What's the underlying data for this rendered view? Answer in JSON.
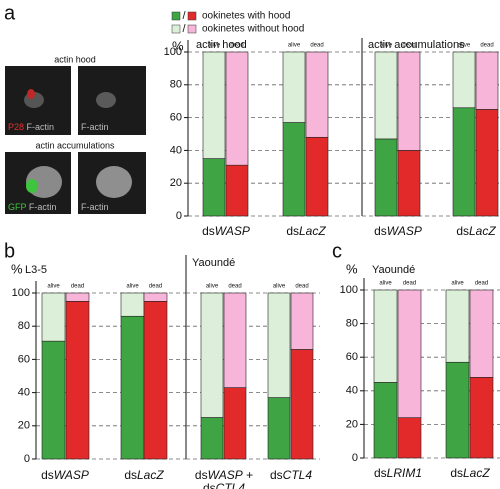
{
  "panel_labels": [
    "a",
    "b",
    "c"
  ],
  "images": [
    {
      "title": "actin hood",
      "labels": [
        [
          "P28",
          " F-actin"
        ],
        [
          "F-actin"
        ]
      ],
      "stain_color": "#e33030"
    },
    {
      "title": "actin accumulations",
      "labels": [
        [
          "GFP",
          " F-actin"
        ],
        [
          "F-actin"
        ]
      ],
      "stain_color": "#3ec43e"
    }
  ],
  "chart_data": [
    {
      "type": "bar",
      "stacked": true,
      "title": "actin hood",
      "ylabel": "%",
      "ylim": [
        0,
        100
      ],
      "yticks": [
        0,
        20,
        40,
        60,
        80,
        100
      ],
      "ytick_labels": true,
      "grid": true,
      "categories": [
        "alive",
        "dead",
        "alive",
        "dead"
      ],
      "groups": [
        [
          [
            "ds",
            "WASP"
          ]
        ],
        [
          [
            "ds",
            "LacZ"
          ]
        ]
      ],
      "series": [
        {
          "name": "ookinetes with hood",
          "colors": [
            "#3ea444",
            "#e32a2a",
            "#3ea444",
            "#e32a2a"
          ],
          "values": [
            35,
            31,
            57,
            48
          ]
        },
        {
          "name": "ookinetes without hood",
          "colors": [
            "#dcefd8",
            "#f7b5d9",
            "#dcefd8",
            "#f7b5d9"
          ],
          "values": [
            65,
            69,
            43,
            52
          ]
        }
      ]
    },
    {
      "type": "bar",
      "stacked": true,
      "title": "actin accumulations",
      "ylim": [
        0,
        100
      ],
      "yticks": [
        0,
        20,
        40,
        60,
        80,
        100
      ],
      "ytick_labels": false,
      "grid": true,
      "categories": [
        "alive",
        "dead",
        "alive",
        "dead"
      ],
      "groups": [
        [
          [
            "ds",
            "WASP"
          ]
        ],
        [
          [
            "ds",
            "LacZ"
          ]
        ]
      ],
      "series": [
        {
          "name": "ookinetes with hood",
          "colors": [
            "#3ea444",
            "#e32a2a",
            "#3ea444",
            "#e32a2a"
          ],
          "values": [
            47,
            40,
            66,
            65
          ]
        },
        {
          "name": "ookinetes without hood",
          "colors": [
            "#dcefd8",
            "#f7b5d9",
            "#dcefd8",
            "#f7b5d9"
          ],
          "values": [
            53,
            60,
            34,
            35
          ]
        }
      ]
    },
    {
      "type": "bar",
      "stacked": true,
      "title": "L3-5",
      "ylabel": "%",
      "ylim": [
        0,
        100
      ],
      "yticks": [
        0,
        20,
        40,
        60,
        80,
        100
      ],
      "ytick_labels": true,
      "grid": true,
      "categories": [
        "alive",
        "dead",
        "alive",
        "dead"
      ],
      "groups": [
        [
          [
            "ds",
            "WASP"
          ]
        ],
        [
          [
            "ds",
            "LacZ"
          ]
        ]
      ],
      "series": [
        {
          "name": "ookinetes with hood",
          "colors": [
            "#3ea444",
            "#e32a2a",
            "#3ea444",
            "#e32a2a"
          ],
          "values": [
            71,
            95,
            86,
            95
          ]
        },
        {
          "name": "ookinetes without hood",
          "colors": [
            "#dcefd8",
            "#f7b5d9",
            "#dcefd8",
            "#f7b5d9"
          ],
          "values": [
            29,
            5,
            14,
            5
          ]
        }
      ]
    },
    {
      "type": "bar",
      "stacked": true,
      "title": "Yaoundé",
      "ylim": [
        0,
        100
      ],
      "yticks": [
        0,
        20,
        40,
        60,
        80,
        100
      ],
      "ytick_labels": false,
      "grid": true,
      "categories": [
        "alive",
        "dead",
        "alive",
        "dead"
      ],
      "groups": [
        [
          [
            "ds",
            "WASP",
            " +"
          ],
          [
            "ds",
            "CTL4"
          ]
        ],
        [
          [
            "ds",
            "CTL4"
          ]
        ]
      ],
      "series": [
        {
          "name": "ookinetes with hood",
          "colors": [
            "#3ea444",
            "#e32a2a",
            "#3ea444",
            "#e32a2a"
          ],
          "values": [
            25,
            43,
            37,
            66
          ]
        },
        {
          "name": "ookinetes without hood",
          "colors": [
            "#dcefd8",
            "#f7b5d9",
            "#dcefd8",
            "#f7b5d9"
          ],
          "values": [
            75,
            57,
            63,
            34
          ]
        }
      ]
    },
    {
      "type": "bar",
      "stacked": true,
      "title": "Yaoundé",
      "ylabel": "%",
      "ylim": [
        0,
        100
      ],
      "yticks": [
        0,
        20,
        40,
        60,
        80,
        100
      ],
      "ytick_labels": true,
      "grid": true,
      "categories": [
        "alive",
        "dead",
        "alive",
        "dead"
      ],
      "groups": [
        [
          [
            "ds",
            "LRIM1"
          ]
        ],
        [
          [
            "ds",
            "LacZ"
          ]
        ]
      ],
      "series": [
        {
          "name": "ookinetes with hood",
          "colors": [
            "#3ea444",
            "#e32a2a",
            "#3ea444",
            "#e32a2a"
          ],
          "values": [
            45,
            24,
            57,
            48
          ]
        },
        {
          "name": "ookinetes without hood",
          "colors": [
            "#dcefd8",
            "#f7b5d9",
            "#dcefd8",
            "#f7b5d9"
          ],
          "values": [
            55,
            76,
            43,
            52
          ]
        }
      ]
    }
  ]
}
